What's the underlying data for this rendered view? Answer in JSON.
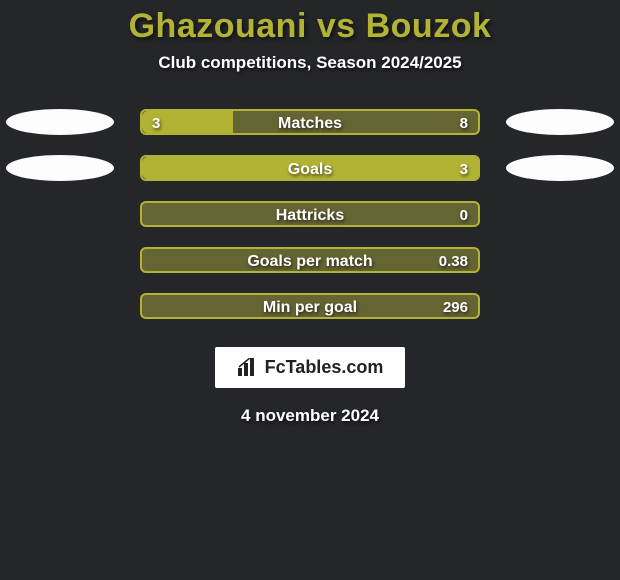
{
  "title": "Ghazouani vs Bouzok",
  "subtitle": "Club competitions, Season 2024/2025",
  "date": "4 november 2024",
  "colors": {
    "background": "#25262a",
    "title": "#b2b234",
    "text": "#ffffff",
    "ellipse_left_bg": "#fdfdfd",
    "ellipse_right_bg": "#fdfdfd"
  },
  "logo": {
    "text": "FcTables.com",
    "bg": "#ffffff",
    "fg": "#222222"
  },
  "rows": [
    {
      "label": "Matches",
      "left_value": "3",
      "right_value": "8",
      "fill_pct": 27,
      "bar_fill": "#b2b234",
      "bar_bg": "#656433",
      "show_left_ellipse": true,
      "show_right_ellipse": true
    },
    {
      "label": "Goals",
      "left_value": "",
      "right_value": "3",
      "fill_pct": 100,
      "bar_fill": "#b2b234",
      "bar_bg": "#656433",
      "show_left_ellipse": true,
      "show_right_ellipse": true
    },
    {
      "label": "Hattricks",
      "left_value": "",
      "right_value": "0",
      "fill_pct": 0,
      "bar_fill": "#b2b234",
      "bar_bg": "#656433",
      "show_left_ellipse": false,
      "show_right_ellipse": false
    },
    {
      "label": "Goals per match",
      "left_value": "",
      "right_value": "0.38",
      "fill_pct": 0,
      "bar_fill": "#b2b234",
      "bar_bg": "#656433",
      "show_left_ellipse": false,
      "show_right_ellipse": false
    },
    {
      "label": "Min per goal",
      "left_value": "",
      "right_value": "296",
      "fill_pct": 0,
      "bar_fill": "#b2b234",
      "bar_bg": "#656433",
      "show_left_ellipse": false,
      "show_right_ellipse": false
    }
  ]
}
